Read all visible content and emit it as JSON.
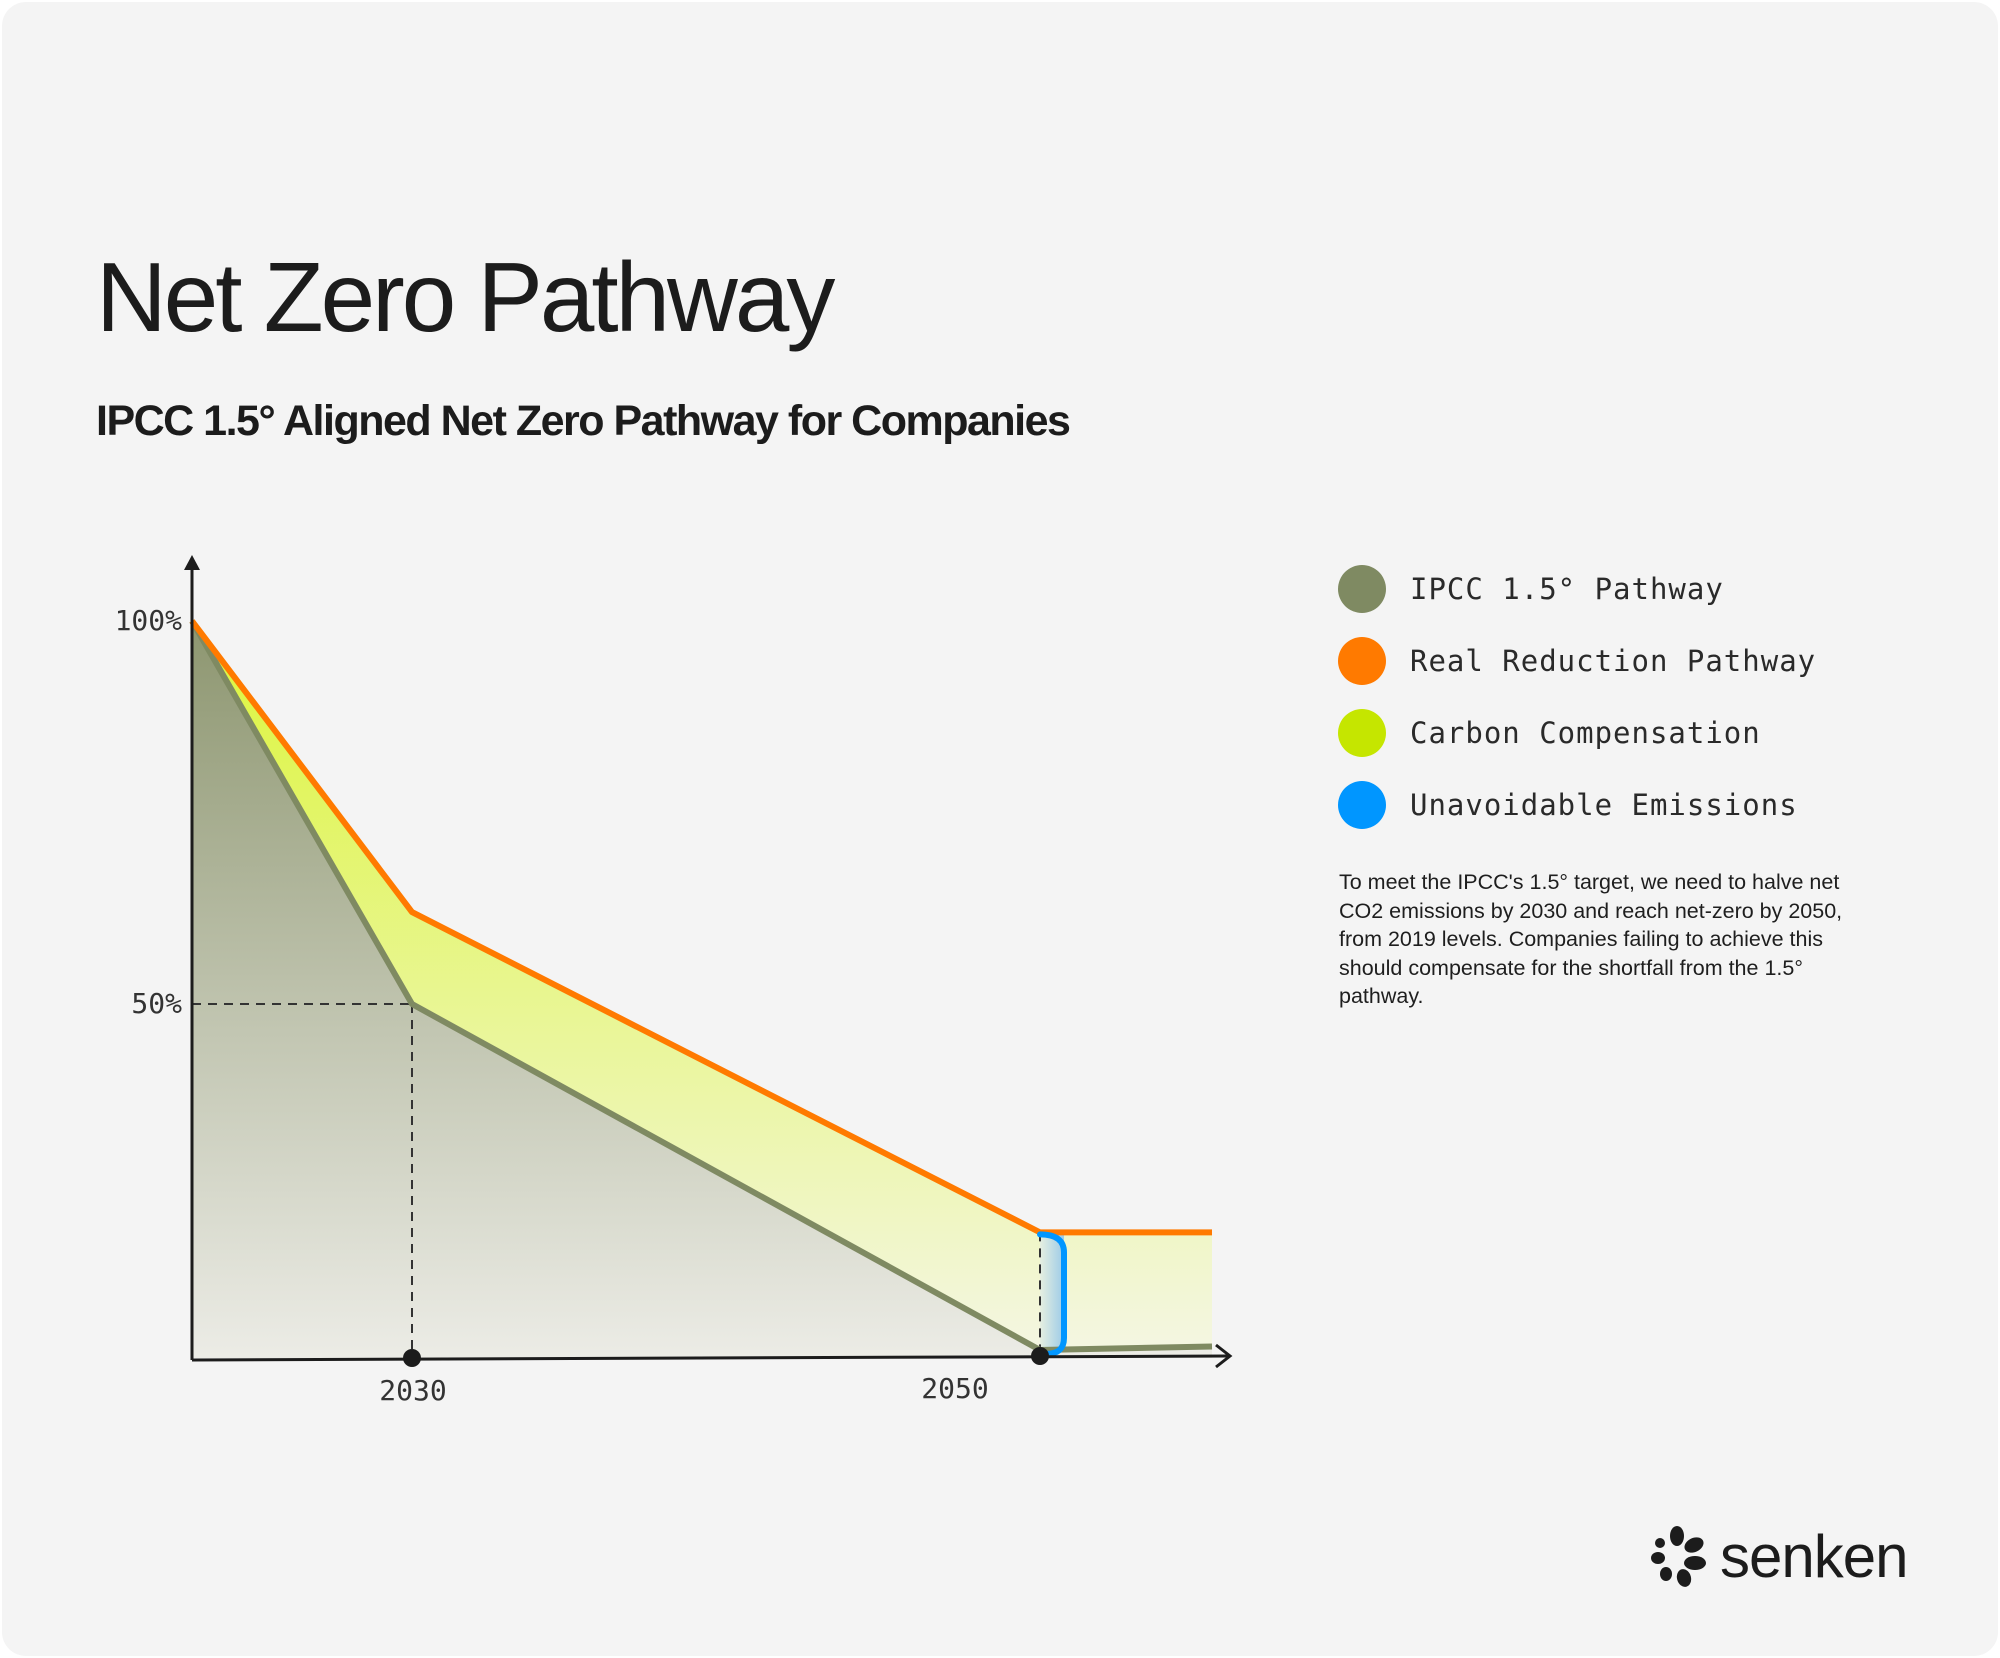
{
  "header": {
    "title": "Net Zero Pathway",
    "subtitle": "IPCC 1.5° Aligned  Net Zero Pathway for Companies"
  },
  "chart_data": {
    "type": "area",
    "title": "Net Zero Pathway",
    "xlabel": "",
    "ylabel": "",
    "x_ticks": [
      "2030",
      "2050"
    ],
    "y_ticks": [
      "100%",
      "50%"
    ],
    "ylim": [
      0,
      100
    ],
    "series": [
      {
        "name": "IPCC 1.5° Pathway",
        "color": "#7f8a62",
        "points": [
          [
            2019,
            100
          ],
          [
            2030,
            50
          ],
          [
            2050,
            0
          ],
          [
            2055,
            0.5
          ]
        ]
      },
      {
        "name": "Real Reduction Pathway",
        "color": "#ff7a00",
        "points": [
          [
            2019,
            100
          ],
          [
            2030,
            62
          ],
          [
            2050,
            17
          ],
          [
            2055,
            17
          ]
        ]
      }
    ],
    "areas": [
      {
        "name": "Carbon Compensation",
        "color": "#c5e600",
        "between": [
          "Real Reduction Pathway",
          "IPCC 1.5° Pathway"
        ]
      },
      {
        "name": "Unavoidable Emissions",
        "color": "#0096ff",
        "at_year": 2050
      }
    ],
    "reference_lines": [
      {
        "year": 2030,
        "value": 50
      },
      {
        "year": 2050
      }
    ],
    "legend_placement": "right"
  },
  "legend": [
    {
      "label": "IPCC 1.5° Pathway",
      "color": "#7f8a62"
    },
    {
      "label": "Real Reduction Pathway",
      "color": "#ff7a00"
    },
    {
      "label": "Carbon Compensation",
      "color": "#c5e600"
    },
    {
      "label": "Unavoidable Emissions",
      "color": "#0096ff"
    }
  ],
  "note": "To meet the IPCC's 1.5° target, we need to halve net CO2 emissions by 2030 and reach net-zero by 2050, from 2019 levels. Companies failing to achieve this should compensate for the shortfall from the 1.5° pathway.",
  "brand": {
    "name": "senken"
  }
}
